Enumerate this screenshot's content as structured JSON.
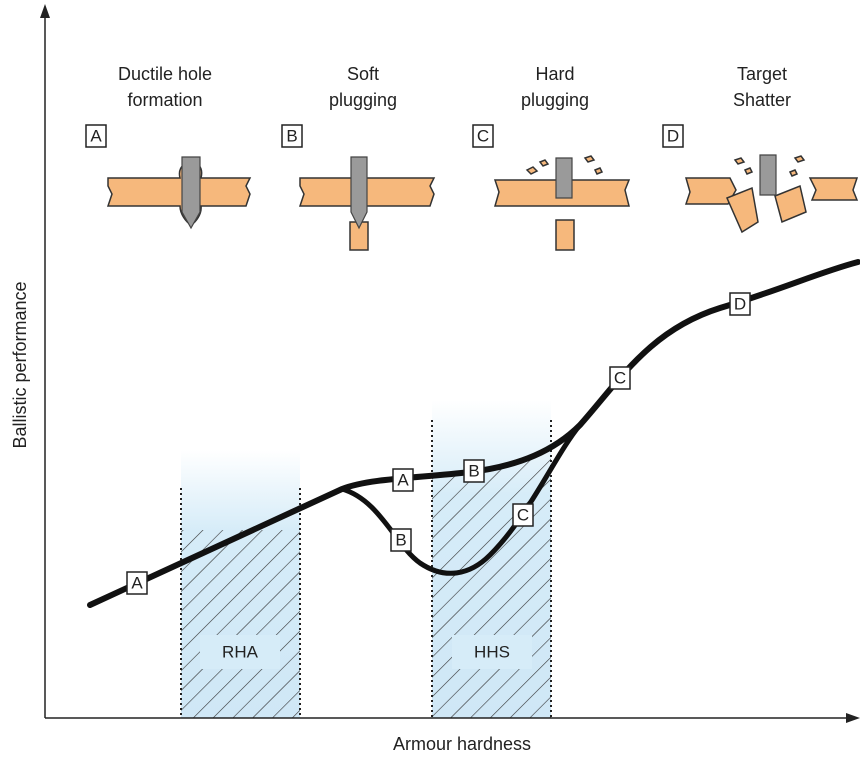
{
  "mechanisms": [
    {
      "letter": "A",
      "lines": [
        "Ductile hole",
        "formation"
      ]
    },
    {
      "letter": "B",
      "lines": [
        "Soft",
        "plugging"
      ]
    },
    {
      "letter": "C",
      "lines": [
        "Hard",
        "plugging"
      ]
    },
    {
      "letter": "D",
      "lines": [
        "Target",
        "Shatter"
      ]
    }
  ],
  "curve_labels": [
    "A",
    "A",
    "B",
    "B",
    "C",
    "C",
    "D"
  ],
  "regions": [
    "RHA",
    "HHS"
  ],
  "axes": {
    "y_label": "Ballistic performance",
    "x_label": "Armour hardness"
  }
}
